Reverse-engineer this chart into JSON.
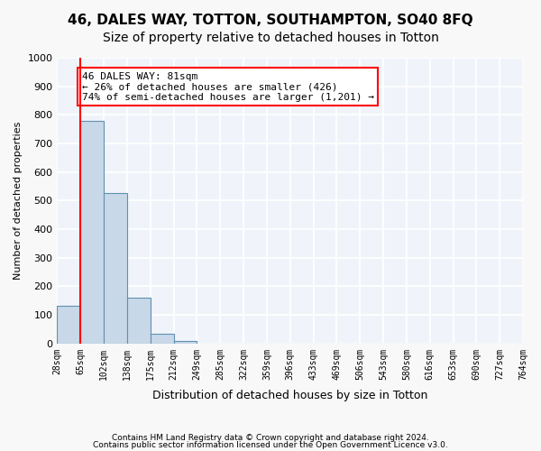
{
  "title": "46, DALES WAY, TOTTON, SOUTHAMPTON, SO40 8FQ",
  "subtitle": "Size of property relative to detached houses in Totton",
  "xlabel": "Distribution of detached houses by size in Totton",
  "ylabel": "Number of detached properties",
  "footnote1": "Contains HM Land Registry data © Crown copyright and database right 2024.",
  "footnote2": "Contains public sector information licensed under the Open Government Licence v3.0.",
  "bin_labels": [
    "28sqm",
    "65sqm",
    "102sqm",
    "138sqm",
    "175sqm",
    "212sqm",
    "249sqm",
    "285sqm",
    "322sqm",
    "359sqm",
    "396sqm",
    "433sqm",
    "469sqm",
    "506sqm",
    "543sqm",
    "580sqm",
    "616sqm",
    "653sqm",
    "690sqm",
    "727sqm",
    "764sqm"
  ],
  "bar_values": [
    133,
    778,
    528,
    160,
    35,
    10,
    0,
    0,
    0,
    0,
    0,
    0,
    0,
    0,
    0,
    0,
    0,
    0,
    0,
    0
  ],
  "bar_color": "#c8d8e8",
  "bar_edge_color": "#6090b0",
  "property_size": 81,
  "property_bin_index": 1,
  "red_line_x": 1,
  "annotation_title": "46 DALES WAY: 81sqm",
  "annotation_line1": "← 26% of detached houses are smaller (426)",
  "annotation_line2": "74% of semi-detached houses are larger (1,201) →",
  "ylim": [
    0,
    1000
  ],
  "yticks": [
    0,
    100,
    200,
    300,
    400,
    500,
    600,
    700,
    800,
    900,
    1000
  ],
  "background_color": "#f0f4fa",
  "grid_color": "#ffffff",
  "title_fontsize": 11,
  "subtitle_fontsize": 10
}
